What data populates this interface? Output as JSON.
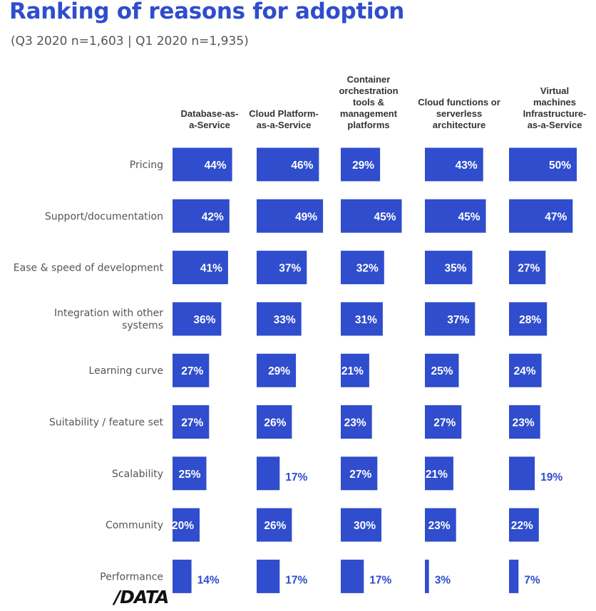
{
  "title": "Ranking of reasons for adoption",
  "subtitle": "(Q3 2020 n=1,603 | Q1 2020 n=1,935)",
  "logo_text": "/DATA",
  "colors": {
    "bar": "#2f4dcc",
    "title": "#2f4dcc"
  },
  "chart_data": {
    "type": "bar",
    "orientation": "horizontal",
    "layout": "small-multiples",
    "unit": "%",
    "categories": [
      "Pricing",
      "Support/documentation",
      "Ease & speed of development",
      "Integration with other systems",
      "Learning curve",
      "Suitability / feature set",
      "Scalability",
      "Community",
      "Performance"
    ],
    "series": [
      {
        "name": "Database-as-a-Service",
        "values": [
          44,
          42,
          41,
          36,
          27,
          27,
          25,
          20,
          14
        ]
      },
      {
        "name": "Cloud Platform-as-a-Service",
        "values": [
          46,
          49,
          37,
          33,
          29,
          26,
          17,
          26,
          17
        ]
      },
      {
        "name": "Container orchestration tools & management platforms",
        "values": [
          29,
          45,
          32,
          31,
          21,
          23,
          27,
          30,
          17
        ]
      },
      {
        "name": "Cloud functions or serverless architecture",
        "values": [
          43,
          45,
          35,
          37,
          25,
          27,
          21,
          23,
          3
        ]
      },
      {
        "name": "Virtual machines Infrastructure-as-a-Service",
        "values": [
          50,
          47,
          27,
          28,
          24,
          23,
          19,
          22,
          7
        ]
      }
    ]
  }
}
